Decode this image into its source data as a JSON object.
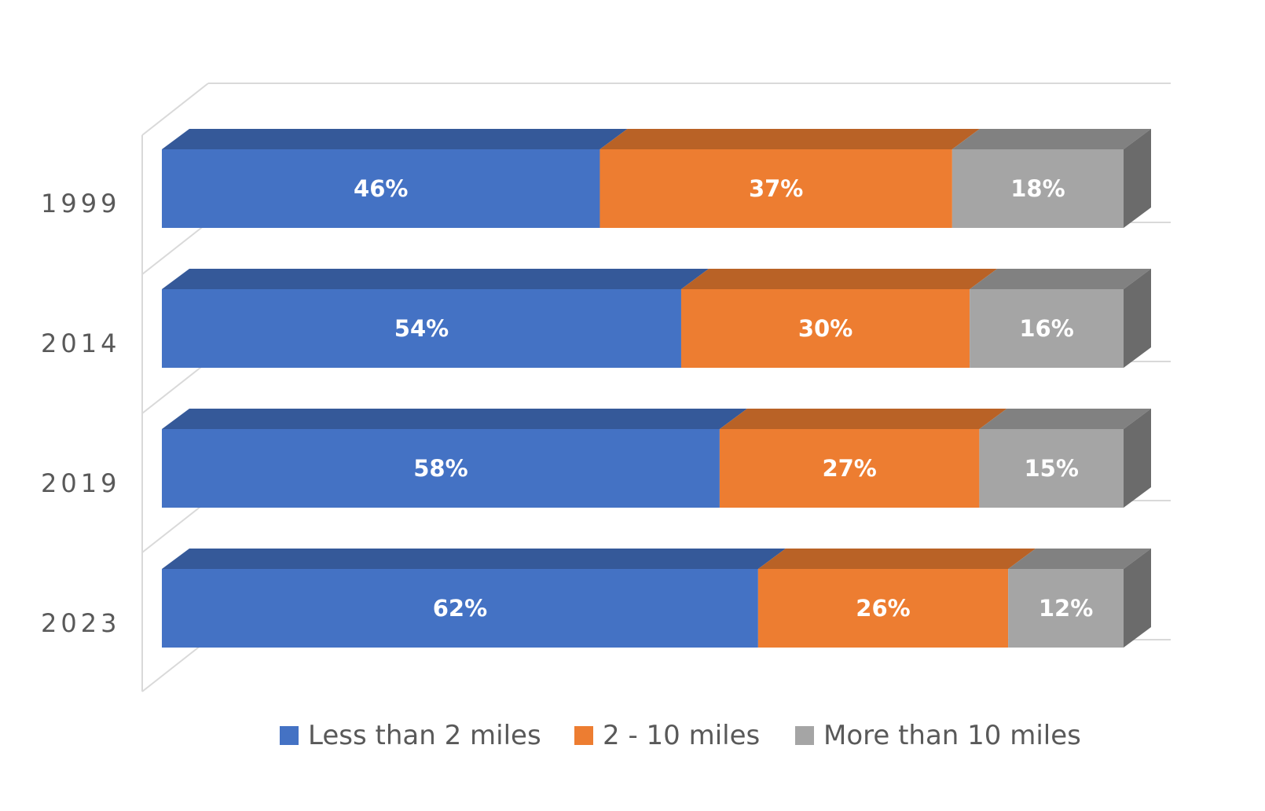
{
  "chart_data": {
    "type": "bar",
    "orientation": "horizontal",
    "stacked": true,
    "percent_stacked": true,
    "three_d": true,
    "title": "",
    "xlabel": "",
    "ylabel": "",
    "categories": [
      "1999",
      "2014",
      "2019",
      "2023"
    ],
    "series": [
      {
        "name": "Less than 2 miles",
        "color": "#4472C4",
        "values": [
          46,
          54,
          58,
          62
        ],
        "labels": [
          "46%",
          "54%",
          "58%",
          "62%"
        ]
      },
      {
        "name": "2 - 10 miles",
        "color": "#ED7D31",
        "values": [
          37,
          30,
          27,
          26
        ],
        "labels": [
          "37%",
          "30%",
          "27%",
          "26%"
        ]
      },
      {
        "name": "More than 10 miles",
        "color": "#A5A5A5",
        "values": [
          18,
          16,
          15,
          12
        ],
        "labels": [
          "18%",
          "16%",
          "15%",
          "12%"
        ]
      }
    ],
    "legend_position": "bottom",
    "grid": true
  }
}
